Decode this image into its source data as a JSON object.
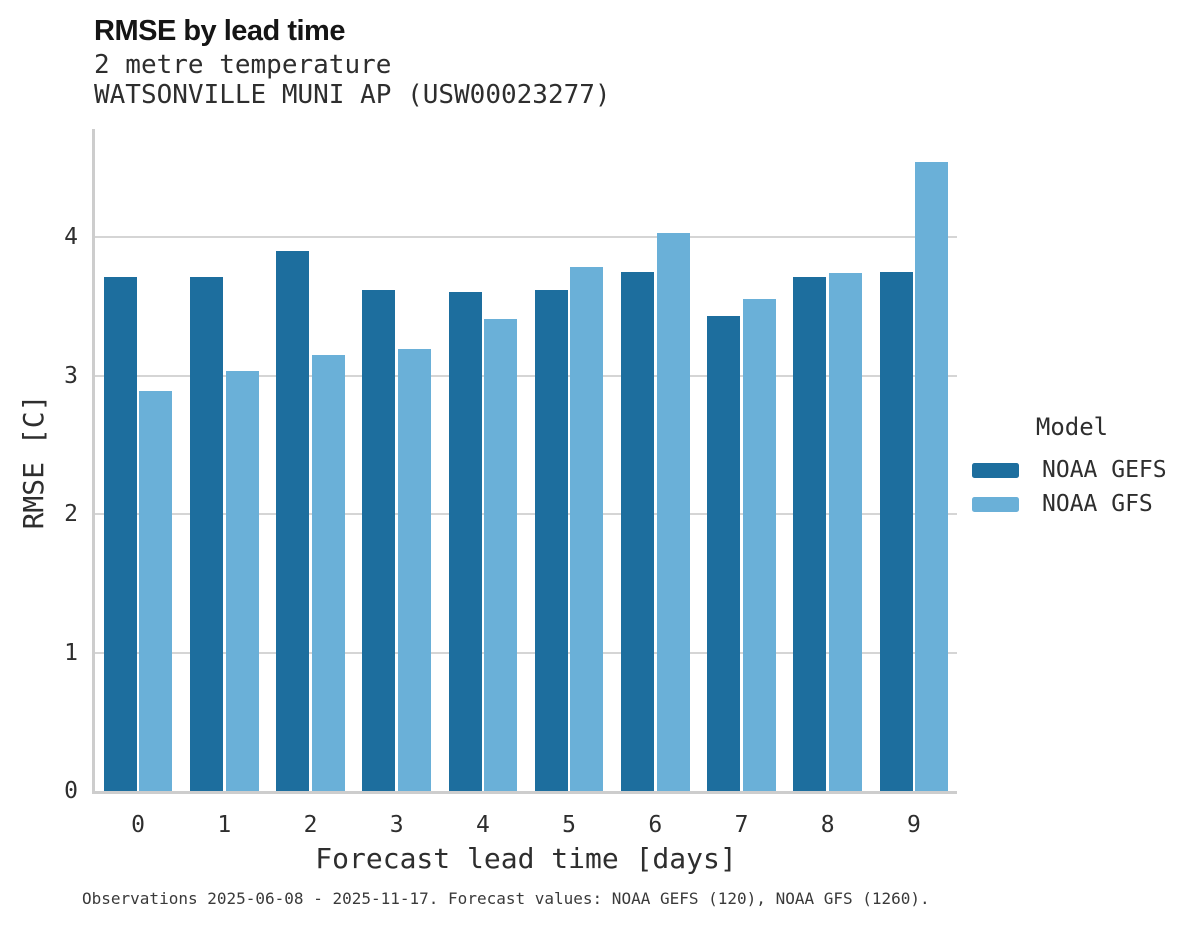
{
  "chart_data": {
    "type": "bar",
    "title": "RMSE by lead time",
    "subtitle": [
      "2 metre temperature",
      "WATSONVILLE MUNI AP (USW00023277)"
    ],
    "categories": [
      "0",
      "1",
      "2",
      "3",
      "4",
      "5",
      "6",
      "7",
      "8",
      "9"
    ],
    "series": [
      {
        "name": "NOAA GEFS",
        "color": "#1d6e9e",
        "values": [
          3.71,
          3.71,
          3.9,
          3.62,
          3.6,
          3.62,
          3.75,
          3.43,
          3.71,
          3.75
        ]
      },
      {
        "name": "NOAA GFS",
        "color": "#6ab0d8",
        "values": [
          2.89,
          3.03,
          3.15,
          3.19,
          3.41,
          3.78,
          4.03,
          3.55,
          3.74,
          4.54
        ]
      }
    ],
    "xlabel": "Forecast lead time [days]",
    "ylabel": "RMSE [C]",
    "yticks": [
      0,
      1,
      2,
      3,
      4
    ],
    "ylim": [
      0,
      4.78
    ],
    "grid": true,
    "legend_title": "Model",
    "legend_position": "right",
    "caption": "Observations 2025-06-08 - 2025-11-17. Forecast values: NOAA GEFS (120), NOAA GFS (1260)."
  },
  "colors": {
    "grid": "#d5d5d5",
    "spine": "#cdcdcd",
    "title_text": "#151515",
    "text": "#2e2e2e",
    "caption_text": "#3a3a3a",
    "background": "#ffffff"
  }
}
